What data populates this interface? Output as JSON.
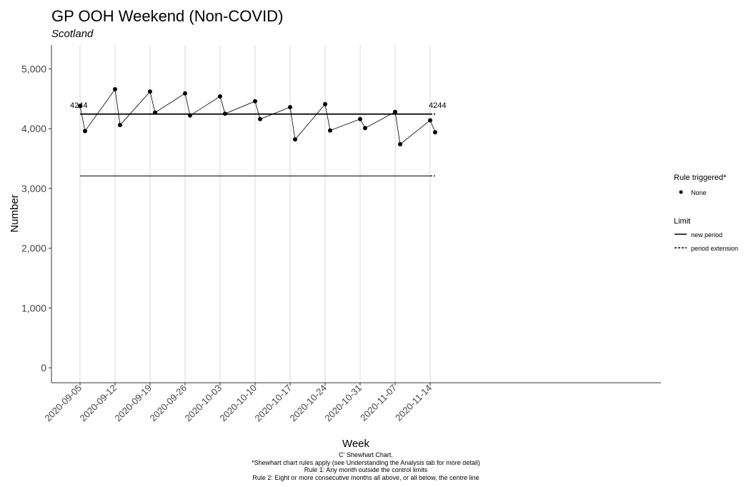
{
  "chart_data": {
    "type": "line",
    "title": "GP OOH Weekend (Non-COVID)",
    "subtitle": "Scotland",
    "xlabel": "Week",
    "ylabel": "Number",
    "x": [
      "2020-09-05",
      "2020-09-06",
      "2020-09-12",
      "2020-09-13",
      "2020-09-19",
      "2020-09-20",
      "2020-09-26",
      "2020-09-27",
      "2020-10-03",
      "2020-10-04",
      "2020-10-10",
      "2020-10-11",
      "2020-10-17",
      "2020-10-18",
      "2020-10-24",
      "2020-10-25",
      "2020-10-31",
      "2020-11-01",
      "2020-11-07",
      "2020-11-08",
      "2020-11-14",
      "2020-11-15"
    ],
    "series": [
      {
        "values": [
          4380,
          3960,
          4660,
          4060,
          4620,
          4270,
          4590,
          4220,
          4540,
          4250,
          4460,
          4160,
          4360,
          3820,
          4410,
          3970,
          4160,
          4010,
          4280,
          3740,
          4140,
          3940
        ]
      }
    ],
    "x_tick_labels": [
      "2020-09-05",
      "2020-09-12",
      "2020-09-19",
      "2020-09-26",
      "2020-10-03",
      "2020-10-10",
      "2020-10-17",
      "2020-10-24",
      "2020-10-31",
      "2020-11-07",
      "2020-11-14"
    ],
    "y_tick_labels": [
      "0",
      "1,000",
      "2,000",
      "3,000",
      "4,000",
      "5,000"
    ],
    "ylim": [
      -250,
      5400
    ],
    "centre_line": 4244,
    "centre_line_labels": [
      "4244",
      "4244"
    ],
    "lower_limit": 3210,
    "grid": "vertical major gridlines only",
    "legend": {
      "position": "right",
      "rule_title": "Rule triggered*",
      "rule_items": [
        "None"
      ],
      "limit_title": "Limit",
      "limit_items": [
        "new period",
        "period extension"
      ]
    },
    "caption_lines": [
      "C' Shewhart Chart.",
      "*Shewhart chart rules apply (see Understanding the Analysis tab for more detail)",
      "Rule 1: Any month outside the control limits",
      "Rule 2: Eight or more consecutive months all above, or all below, the centre line"
    ]
  }
}
